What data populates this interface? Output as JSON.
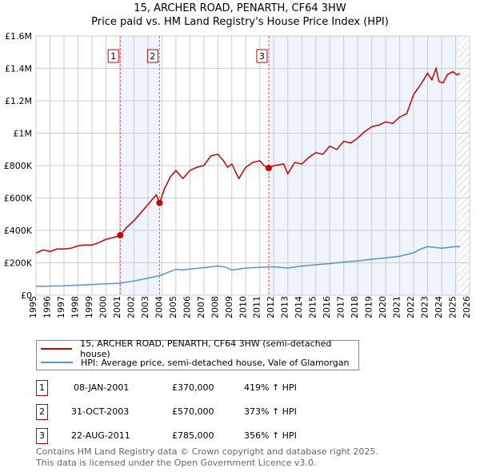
{
  "chart_data": {
    "type": "line",
    "title": "15, ARCHER ROAD, PENARTH, CF64 3HW",
    "subtitle": "Price paid vs. HM Land Registry's House Price Index (HPI)",
    "xlim": [
      1995,
      2026
    ],
    "ylim": [
      0,
      1600000
    ],
    "x_ticks": [
      "1995",
      "1996",
      "1997",
      "1998",
      "1999",
      "2000",
      "2001",
      "2002",
      "2003",
      "2004",
      "2005",
      "2006",
      "2007",
      "2008",
      "2009",
      "2010",
      "2011",
      "2012",
      "2013",
      "2014",
      "2015",
      "2016",
      "2017",
      "2018",
      "2019",
      "2020",
      "2021",
      "2022",
      "2023",
      "2024",
      "2025",
      "2026"
    ],
    "y_ticks": [
      {
        "v": 0,
        "label": "£0"
      },
      {
        "v": 200000,
        "label": "£200K"
      },
      {
        "v": 400000,
        "label": "£400K"
      },
      {
        "v": 600000,
        "label": "£600K"
      },
      {
        "v": 800000,
        "label": "£800K"
      },
      {
        "v": 1000000,
        "label": "£1M"
      },
      {
        "v": 1200000,
        "label": "£1.2M"
      },
      {
        "v": 1400000,
        "label": "£1.4M"
      },
      {
        "v": 1600000,
        "label": "£1.6M"
      }
    ],
    "grid": true,
    "series": [
      {
        "name": "15, ARCHER ROAD, PENARTH, CF64 3HW (semi-detached house)",
        "color": "#cc0000",
        "x": [
          1995,
          1995.5,
          1996,
          1996.5,
          1997,
          1997.5,
          1998,
          1998.5,
          1999,
          1999.5,
          2000,
          2000.5,
          2001.02,
          2001.5,
          2002,
          2002.5,
          2003,
          2003.6,
          2003.83,
          2004.2,
          2004.6,
          2005,
          2005.5,
          2006,
          2006.5,
          2007,
          2007.5,
          2008,
          2008.4,
          2008.7,
          2009,
          2009.5,
          2010,
          2010.5,
          2011,
          2011.3,
          2011.64,
          2012,
          2012.7,
          2013,
          2013.5,
          2014,
          2014.5,
          2015,
          2015.5,
          2016,
          2016.5,
          2017,
          2017.5,
          2018,
          2018.5,
          2019,
          2019.5,
          2020,
          2020.5,
          2021,
          2021.5,
          2022,
          2022.5,
          2023,
          2023.3,
          2023.6,
          2023.8,
          2024.1,
          2024.4,
          2024.8,
          2025.1,
          2025.3
        ],
        "y": [
          260000,
          280000,
          270000,
          285000,
          285000,
          290000,
          305000,
          310000,
          310000,
          325000,
          345000,
          355000,
          370000,
          420000,
          460000,
          510000,
          560000,
          620000,
          570000,
          660000,
          730000,
          770000,
          720000,
          770000,
          790000,
          800000,
          860000,
          870000,
          830000,
          790000,
          810000,
          720000,
          790000,
          820000,
          830000,
          800000,
          785000,
          800000,
          810000,
          750000,
          820000,
          810000,
          850000,
          880000,
          870000,
          920000,
          900000,
          950000,
          940000,
          970000,
          1010000,
          1040000,
          1050000,
          1070000,
          1060000,
          1100000,
          1120000,
          1240000,
          1300000,
          1370000,
          1330000,
          1400000,
          1320000,
          1310000,
          1360000,
          1380000,
          1360000,
          1370000
        ]
      },
      {
        "name": "HPI: Average price, semi-detached house, Vale of Glamorgan",
        "color": "#5b8fd6",
        "x": [
          1995,
          1996,
          1997,
          1998,
          1999,
          2000,
          2001,
          2002,
          2003,
          2004,
          2005,
          2005.5,
          2006,
          2007,
          2008,
          2008.5,
          2009,
          2010,
          2011,
          2012,
          2013,
          2014,
          2015,
          2016,
          2017,
          2018,
          2019,
          2020,
          2021,
          2022,
          2022.5,
          2023,
          2023.5,
          2024,
          2024.5,
          2025,
          2025.3
        ],
        "y": [
          55000,
          56000,
          58000,
          62000,
          66000,
          70000,
          74000,
          88000,
          105000,
          125000,
          160000,
          155000,
          162000,
          170000,
          180000,
          175000,
          155000,
          168000,
          172000,
          175000,
          168000,
          180000,
          188000,
          195000,
          205000,
          212000,
          222000,
          230000,
          240000,
          262000,
          285000,
          300000,
          295000,
          290000,
          295000,
          300000,
          300000
        ]
      }
    ],
    "sales": [
      {
        "label": "1",
        "x": 2001.02,
        "date": "08-JAN-2001",
        "price": 370000,
        "price_label": "£370,000",
        "hpi": "419% ↑ HPI"
      },
      {
        "label": "2",
        "x": 2003.83,
        "date": "31-OCT-2003",
        "price": 570000,
        "price_label": "£570,000",
        "hpi": "373% ↑ HPI"
      },
      {
        "label": "3",
        "x": 2011.64,
        "date": "22-AUG-2011",
        "price": 785000,
        "price_label": "£785,000",
        "hpi": "356% ↑ HPI"
      }
    ],
    "shaded": [
      [
        2001.02,
        2003.83
      ],
      [
        2011.64,
        2025.2
      ]
    ],
    "hatched_from": 2025.2
  },
  "footer": {
    "line1": "Contains HM Land Registry data © Crown copyright and database right 2025.",
    "line2": "This data is licensed under the Open Government Licence v3.0."
  }
}
